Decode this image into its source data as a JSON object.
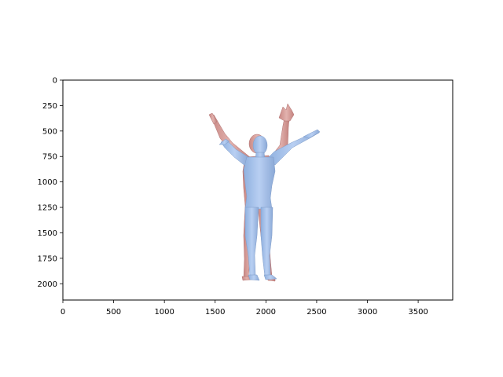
{
  "chart_data": {
    "type": "image",
    "title": "",
    "xlabel": "",
    "ylabel": "",
    "xlim": [
      0,
      3840
    ],
    "ylim": [
      2160,
      0
    ],
    "x_ticks": [
      0,
      500,
      1000,
      1500,
      2000,
      2500,
      3000,
      3500
    ],
    "y_ticks": [
      0,
      250,
      500,
      750,
      1000,
      1250,
      1500,
      1750,
      2000
    ],
    "grid": false,
    "legend": "none",
    "content": "rendered human body meshes overlaid: reference (pink) behind prediction (blue), arms raised",
    "colors": {
      "prediction_mesh": "#a9c4ec",
      "reference_mesh": "#d9a3a0",
      "frame": "#000000"
    }
  }
}
